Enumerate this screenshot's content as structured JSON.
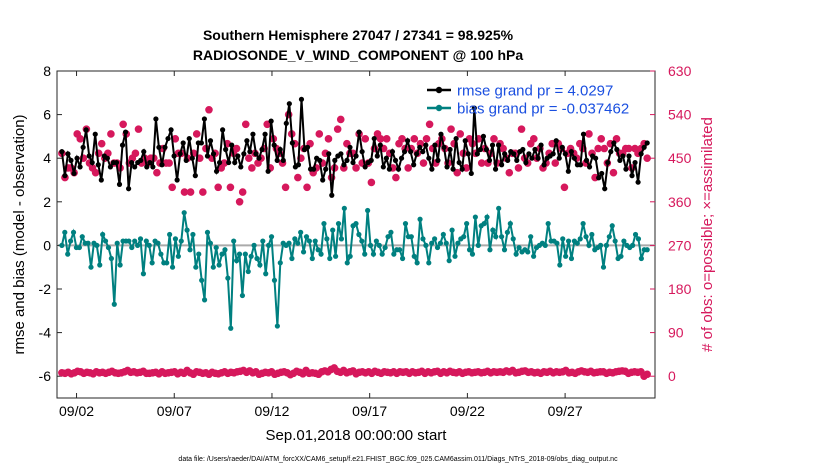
{
  "chart_data": {
    "type": "line",
    "title_line1": "Southern Hemisphere 27047 / 27341 = 98.925%",
    "title_line2": "RADIOSONDE_V_WIND_COMPONENT @ 100 hPa",
    "ylabel_left": "rmse and bias (model - observation)",
    "ylabel_right": "# of obs: o=possible; ×=assimilated",
    "xlabel": "Sep.01,2018 00:00:00 start",
    "footer": "data file: /Users/raeder/DAI/ATM_forcXX/CAM6_setup/f.e21.FHIST_BGC.f09_025.CAM6assim.011/Diags_NTrS_2018-09/obs_diag_output.nc",
    "ylim_left": [
      -7,
      8
    ],
    "ylim_right": [
      -45,
      630
    ],
    "xlim": [
      0,
      30.6
    ],
    "x_ticks": [
      {
        "label": "09/02",
        "x": 1
      },
      {
        "label": "09/07",
        "x": 6
      },
      {
        "label": "09/12",
        "x": 11
      },
      {
        "label": "09/17",
        "x": 16
      },
      {
        "label": "09/22",
        "x": 21
      },
      {
        "label": "09/27",
        "x": 26
      }
    ],
    "y_ticks_left": [
      "8",
      "6",
      "4",
      "2",
      "0",
      "-2",
      "-4",
      "-6"
    ],
    "y_tick_values_left": [
      8,
      6,
      4,
      2,
      0,
      -2,
      -4,
      -6
    ],
    "y_ticks_right": [
      "630",
      "540",
      "450",
      "360",
      "270",
      "180",
      "90",
      "0"
    ],
    "y_tick_values_right": [
      630,
      540,
      450,
      360,
      270,
      180,
      90,
      0
    ],
    "legend": [
      {
        "name": "rmse grand pr = 4.0297",
        "color": "#000000"
      },
      {
        "name": "bias grand pr = -0.037462",
        "color": "#008080"
      }
    ],
    "series": [
      {
        "name": "rmse",
        "color": "#000000",
        "values": [
          4.3,
          3.2,
          4.2,
          3.9,
          3.3,
          4.0,
          3.6,
          4.5,
          5.3,
          4.1,
          3.8,
          5.1,
          3.7,
          3.0,
          4.1,
          4.0,
          3.6,
          3.8,
          3.8,
          2.8,
          4.6,
          5.2,
          2.6,
          3.8,
          3.6,
          3.8,
          3.9,
          4.3,
          3.6,
          3.8,
          3.6,
          5.8,
          4.5,
          3.7,
          4.5,
          4.9,
          5.3,
          4.1,
          3.0,
          4.2,
          4.7,
          3.9,
          4.9,
          4.0,
          3.2,
          4.7,
          4.7,
          5.8,
          4.1,
          4.8,
          4.2,
          3.4,
          3.8,
          5.3,
          4.4,
          3.8,
          4.6,
          3.8,
          4.1,
          3.6,
          4.2,
          4.8,
          4.3,
          5.1,
          4.2,
          4.0,
          4.4,
          5.1,
          3.4,
          5.7,
          4.6,
          3.9,
          4.4,
          3.9,
          5.6,
          6.5,
          4.7,
          3.6,
          3.7,
          6.7,
          4.4,
          4.5,
          3.5,
          3.5,
          4.0,
          3.9,
          3.0,
          3.5,
          4.2,
          2.3,
          3.9,
          4.1,
          4.2,
          3.7,
          3.9,
          4.5,
          3.8,
          4.1,
          5.2,
          4.3,
          3.6,
          3.8,
          3.9,
          4.9,
          4.1,
          4.6,
          3.6,
          4.0,
          3.5,
          4.3,
          3.9,
          3.5,
          4.0,
          4.3,
          4.8,
          4.3,
          3.7,
          4.2,
          4.5,
          4.3,
          4.6,
          4.0,
          3.5,
          4.6,
          3.9,
          5.1,
          4.5,
          3.6,
          4.4,
          3.5,
          4.9,
          3.8,
          3.5,
          4.8,
          4.2,
          3.3,
          6.3,
          4.2,
          4.4,
          5.0,
          4.4,
          3.9,
          4.6,
          3.5,
          4.6,
          3.7,
          4.2,
          3.9,
          4.3,
          4.2,
          3.9,
          4.3,
          4.4,
          3.8,
          4.2,
          4.0,
          4.4,
          4.0,
          4.6,
          3.7,
          4.0,
          4.1,
          4.2,
          4.8,
          4.0,
          4.5,
          4.2,
          3.4,
          4.3,
          4.0,
          3.7,
          3.7,
          5.1,
          3.9,
          3.6,
          4.1,
          4.0,
          3.1,
          3.3,
          2.6,
          3.8,
          4.3,
          4.7,
          4.4,
          3.9,
          4.1,
          3.5,
          4.1,
          3.2,
          3.8,
          2.9,
          4.2,
          4.5,
          4.7
        ]
      },
      {
        "name": "bias",
        "color": "#008080",
        "values": [
          0.0,
          0.6,
          -0.4,
          0.2,
          0.6,
          -0.1,
          -0.1,
          0.4,
          0.1,
          0.1,
          -1.0,
          0.1,
          0.0,
          -0.9,
          0.5,
          0.2,
          -0.1,
          -0.6,
          -2.7,
          0.1,
          -0.9,
          0.2,
          0.2,
          0.2,
          -0.1,
          0.2,
          0.0,
          0.3,
          -1.3,
          0.2,
          0.0,
          -0.8,
          0.2,
          0.1,
          -0.4,
          -0.8,
          -0.8,
          0.5,
          -1.0,
          0.3,
          -0.5,
          0.2,
          1.5,
          0.7,
          -0.2,
          0.5,
          -1.0,
          -0.4,
          -1.6,
          -2.5,
          0.6,
          0.1,
          -1.0,
          -0.1,
          -0.9,
          -0.4,
          -0.2,
          -1.5,
          -3.8,
          0.2,
          -0.7,
          -0.4,
          -2.3,
          -0.4,
          -1.2,
          -0.5,
          0.0,
          -0.6,
          -0.9,
          0.2,
          -1.3,
          0.0,
          0.4,
          -1.6,
          -3.7,
          -0.8,
          0.1,
          0.0,
          0.1,
          -0.6,
          0.3,
          0.1,
          0.6,
          -0.3,
          0.4,
          0.2,
          -0.6,
          0.2,
          -0.2,
          -0.4,
          1.0,
          0.3,
          -0.6,
          0.7,
          -0.5,
          1.0,
          0.3,
          1.7,
          -0.8,
          -0.5,
          0.9,
          1.0,
          0.5,
          0.2,
          -0.4,
          1.6,
          0.0,
          -0.4,
          0.2,
          0.0,
          -0.4,
          -0.1,
          0.4,
          0.6,
          -0.4,
          -0.2,
          -0.2,
          -0.6,
          1.0,
          0.4,
          0.4,
          -0.5,
          -0.8,
          1.2,
          0.3,
          0.0,
          -0.8,
          0.1,
          0.3,
          -0.1,
          0.1,
          0.5,
          0.1,
          -0.7,
          0.7,
          -0.5,
          0.1,
          0.3,
          0.4,
          1.0,
          -0.2,
          -0.4,
          1.3,
          0.0,
          0.9,
          1.0,
          1.3,
          -0.2,
          0.7,
          0.4,
          1.7,
          0.4,
          -0.2,
          0.6,
          1.0,
          0.3,
          -0.4,
          -0.1,
          -0.3,
          -0.2,
          -0.3,
          0.4,
          -0.5,
          -0.1,
          0.0,
          0.1,
          0.0,
          1.0,
          0.2,
          0.2,
          0.1,
          -0.9,
          0.3,
          -0.5,
          0.2,
          -0.6,
          0.2,
          0.1,
          0.3,
          1.0,
          0.4,
          0.0,
          0.5,
          -0.2,
          -0.1,
          0.0,
          -1.0,
          0.0,
          0.4,
          0.9,
          0.2,
          -0.6,
          -0.5,
          0.2,
          0.0,
          -0.1,
          0.0,
          0.5,
          0.3,
          -0.6,
          -0.2,
          -0.2
        ]
      },
      {
        "name": "nobs_possible",
        "color": "#d6185c",
        "values": [
          460,
          410,
          430,
          430,
          420,
          500,
          490,
          450,
          510,
          440,
          430,
          420,
          460,
          480,
          450,
          460,
          500,
          440,
          440,
          430,
          520,
          500,
          440,
          450,
          460,
          510,
          440,
          450,
          440,
          450,
          450,
          420,
          440,
          470,
          440,
          440,
          390,
          490,
          460,
          460,
          380,
          450,
          380,
          460,
          500,
          450,
          380,
          470,
          550,
          450,
          460,
          390,
          430,
          440,
          480,
          390,
          460,
          470,
          360,
          380,
          520,
          450,
          430,
          460,
          440,
          450,
          470,
          520,
          430,
          490,
          470,
          460,
          440,
          390,
          540,
          500,
          480,
          410,
          450,
          470,
          390,
          480,
          420,
          430,
          500,
          440,
          460,
          490,
          410,
          430,
          510,
          530,
          430,
          480,
          460,
          460,
          430,
          500,
          440,
          490,
          440,
          400,
          470,
          500,
          490,
          470,
          490,
          460,
          430,
          410,
          480,
          490,
          470,
          430,
          470,
          490,
          460,
          480,
          440,
          490,
          520,
          470,
          440,
          480,
          490,
          470,
          440,
          510,
          480,
          420,
          500,
          460,
          430,
          490,
          480,
          460,
          490,
          440,
          470,
          440,
          460,
          490,
          440,
          480,
          470,
          450,
          420,
          460,
          460,
          430,
          510,
          450,
          440,
          480,
          490,
          450,
          470,
          430,
          440,
          460,
          480,
          440,
          480,
          470,
          390,
          460,
          470,
          460,
          450,
          480,
          470,
          440,
          500,
          460,
          410,
          470,
          490,
          470,
          440,
          480,
          420,
          490,
          460,
          460,
          470,
          470,
          430,
          470,
          460,
          470,
          480,
          450
        ]
      },
      {
        "name": "nobs_assimilated",
        "color": "#d6185c",
        "values": [
          7,
          6,
          8,
          5,
          7,
          10,
          9,
          6,
          8,
          7,
          5,
          9,
          7,
          8,
          6,
          8,
          10,
          7,
          6,
          7,
          9,
          12,
          8,
          9,
          7,
          8,
          10,
          6,
          6,
          7,
          8,
          5,
          9,
          6,
          7,
          8,
          9,
          5,
          8,
          6,
          12,
          7,
          4,
          9,
          8,
          6,
          7,
          4,
          8,
          6,
          5,
          7,
          9,
          6,
          8,
          7,
          9,
          10,
          12,
          8,
          11,
          7,
          9,
          4,
          6,
          8,
          7,
          9,
          4,
          6,
          8,
          9,
          7,
          3,
          6,
          10,
          8,
          5,
          12,
          6,
          7,
          6,
          4,
          9,
          11,
          9,
          14,
          17,
          10,
          8,
          12,
          7,
          9,
          11,
          5,
          8,
          9,
          7,
          9,
          6,
          10,
          8,
          6,
          9,
          8,
          7,
          9,
          6,
          9,
          8,
          9,
          6,
          9,
          7,
          8,
          10,
          6,
          9,
          7,
          9,
          10,
          6,
          9,
          7,
          10,
          8,
          7,
          9,
          6,
          8,
          9,
          7,
          8,
          9,
          7,
          8,
          10,
          7,
          9,
          8,
          9,
          8,
          11,
          9,
          12,
          7,
          8,
          10,
          11,
          8,
          9,
          7,
          8,
          6,
          9,
          8,
          10,
          7,
          9,
          8,
          9,
          12,
          7,
          8,
          6,
          9,
          11,
          9,
          8,
          10,
          7,
          8,
          9,
          9,
          6,
          8,
          7,
          9,
          10,
          11,
          10,
          6,
          8,
          9,
          8,
          9,
          0,
          4
        ]
      }
    ]
  }
}
